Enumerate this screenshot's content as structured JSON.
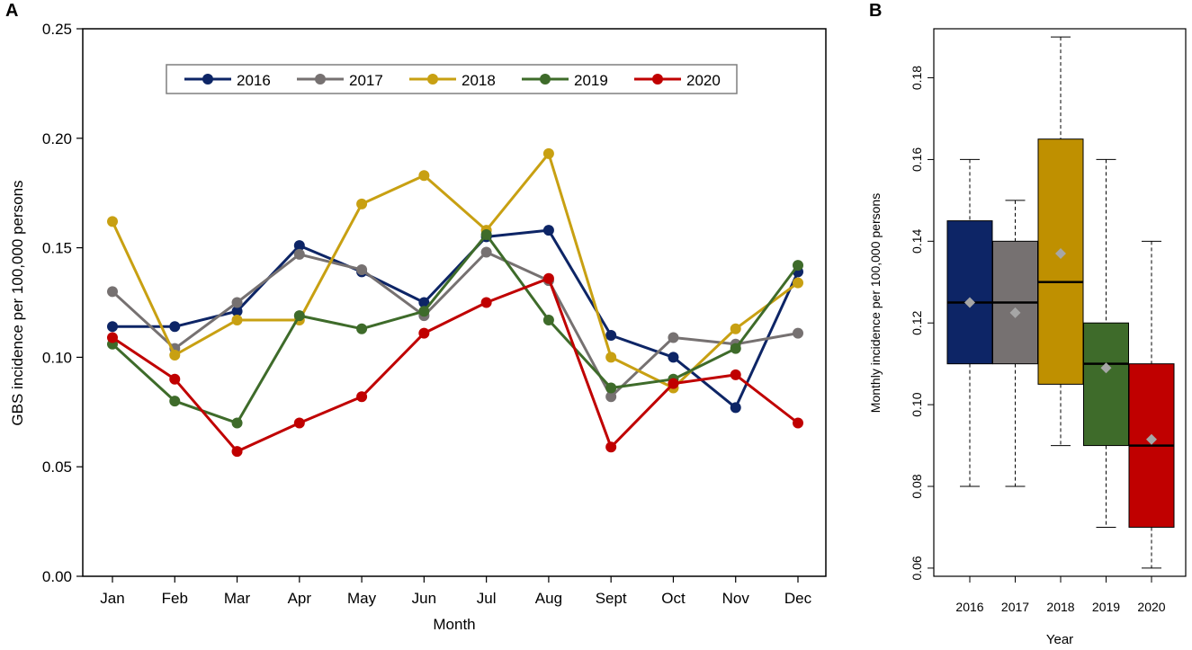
{
  "panels": {
    "a_label": "A",
    "b_label": "B"
  },
  "chart_data": [
    {
      "type": "line",
      "panel": "A",
      "title": "",
      "xlabel": "Month",
      "ylabel": "GBS incidence per 100,000 persons",
      "ylim": [
        0,
        0.25
      ],
      "yticks": [
        0.0,
        0.05,
        0.1,
        0.15,
        0.2,
        0.25
      ],
      "ytick_labels": [
        "0.00",
        "0.05",
        "0.10",
        "0.15",
        "0.20",
        "0.25"
      ],
      "categories": [
        "Jan",
        "Feb",
        "Mar",
        "Apr",
        "May",
        "Jun",
        "Jul",
        "Aug",
        "Sept",
        "Oct",
        "Nov",
        "Dec"
      ],
      "legend_position": "top-center",
      "series": [
        {
          "name": "2016",
          "color": "#0d2566",
          "values": [
            0.114,
            0.114,
            0.121,
            0.151,
            0.139,
            0.125,
            0.155,
            0.158,
            0.11,
            0.1,
            0.077,
            0.139
          ]
        },
        {
          "name": "2017",
          "color": "#767171",
          "values": [
            0.13,
            0.104,
            0.125,
            0.147,
            0.14,
            0.119,
            0.148,
            0.135,
            0.082,
            0.109,
            0.106,
            0.111
          ]
        },
        {
          "name": "2018",
          "color": "#c8a012",
          "values": [
            0.162,
            0.101,
            0.117,
            0.117,
            0.17,
            0.183,
            0.158,
            0.193,
            0.1,
            0.086,
            0.113,
            0.134
          ]
        },
        {
          "name": "2019",
          "color": "#3e6b2a",
          "values": [
            0.106,
            0.08,
            0.07,
            0.119,
            0.113,
            0.121,
            0.156,
            0.117,
            0.086,
            0.09,
            0.104,
            0.142
          ]
        },
        {
          "name": "2020",
          "color": "#c00000",
          "values": [
            0.109,
            0.09,
            0.057,
            0.07,
            0.082,
            0.111,
            0.125,
            0.136,
            0.059,
            0.088,
            0.092,
            0.07
          ]
        }
      ]
    },
    {
      "type": "box",
      "panel": "B",
      "title": "",
      "xlabel": "Year",
      "ylabel": "Monthly incidence per 100,000 persons",
      "ylim": [
        0.058,
        0.192
      ],
      "yticks": [
        0.06,
        0.08,
        0.1,
        0.12,
        0.14,
        0.16,
        0.18
      ],
      "ytick_labels": [
        "0.06",
        "0.08",
        "0.10",
        "0.12",
        "0.14",
        "0.16",
        "0.18"
      ],
      "categories": [
        "2016",
        "2017",
        "2018",
        "2019",
        "2020"
      ],
      "boxes": [
        {
          "name": "2016",
          "color": "#0d2566",
          "min": 0.08,
          "q1": 0.11,
          "median": 0.125,
          "q3": 0.145,
          "max": 0.16,
          "mean": 0.125
        },
        {
          "name": "2017",
          "color": "#767171",
          "min": 0.08,
          "q1": 0.11,
          "median": 0.125,
          "q3": 0.14,
          "max": 0.15,
          "mean": 0.1225
        },
        {
          "name": "2018",
          "color": "#bf9000",
          "min": 0.09,
          "q1": 0.105,
          "median": 0.13,
          "q3": 0.165,
          "max": 0.19,
          "mean": 0.137
        },
        {
          "name": "2019",
          "color": "#3e6b2a",
          "min": 0.07,
          "q1": 0.09,
          "median": 0.11,
          "q3": 0.12,
          "max": 0.16,
          "mean": 0.109
        },
        {
          "name": "2020",
          "color": "#c00000",
          "min": 0.06,
          "q1": 0.07,
          "median": 0.09,
          "q3": 0.11,
          "max": 0.14,
          "mean": 0.0915
        }
      ],
      "mean_marker_color": "#a6a6a6"
    }
  ]
}
